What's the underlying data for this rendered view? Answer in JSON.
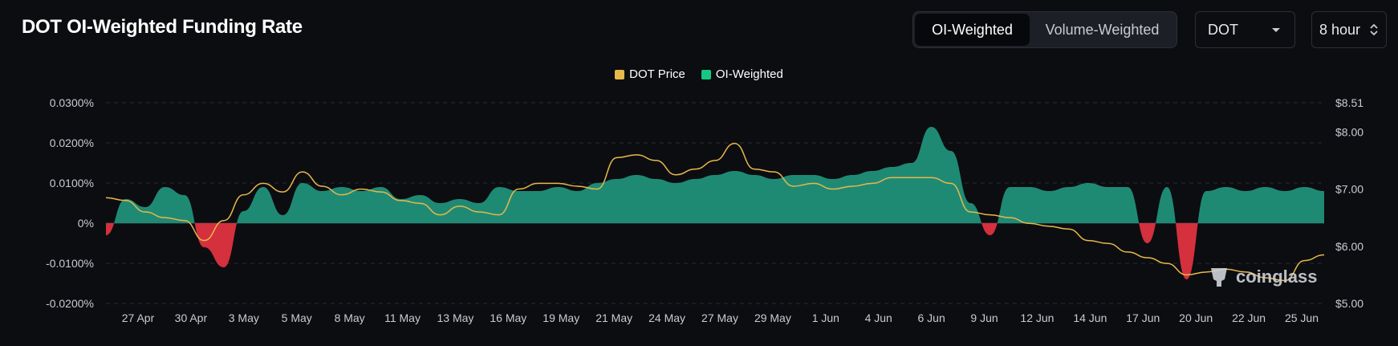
{
  "header": {
    "title": "DOT OI-Weighted Funding Rate",
    "toggle": [
      "OI-Weighted",
      "Volume-Weighted"
    ],
    "coin_select": "DOT",
    "interval_select": "8 hour"
  },
  "watermark": "coinglass",
  "colors": {
    "price": "#e8b84a",
    "positive": "#1f8a74",
    "negative": "#d4303d",
    "grid": "#2a2c33",
    "background": "#0c0d11"
  },
  "chart_data": {
    "type": "area",
    "legend": [
      "DOT Price",
      "OI-Weighted"
    ],
    "legend_position": "top-center",
    "x_tick_labels": [
      "27 Apr",
      "30 Apr",
      "3 May",
      "5 May",
      "8 May",
      "11 May",
      "13 May",
      "16 May",
      "19 May",
      "21 May",
      "24 May",
      "27 May",
      "29 May",
      "1 Jun",
      "4 Jun",
      "6 Jun",
      "9 Jun",
      "12 Jun",
      "14 Jun",
      "17 Jun",
      "20 Jun",
      "22 Jun",
      "25 Jun"
    ],
    "y_left_ticks": [
      "0.0300%",
      "0.0200%",
      "0.0100%",
      "0%",
      "-0.0100%",
      "-0.0200%"
    ],
    "y_right_ticks": [
      "$8.51",
      "$8.00",
      "$7.00",
      "$6.00",
      "$5.00"
    ],
    "y_left_range": [
      -0.02,
      0.03
    ],
    "y_right_range": [
      5.0,
      8.51
    ],
    "grid": true,
    "series": [
      {
        "name": "OI-Weighted",
        "unit": "%",
        "x": [
          "25 Apr",
          "26 Apr",
          "27 Apr",
          "28 Apr",
          "29 Apr",
          "30 Apr",
          "1 May",
          "2 May",
          "3 May",
          "4 May",
          "5 May",
          "6 May",
          "7 May",
          "8 May",
          "9 May",
          "10 May",
          "11 May",
          "12 May",
          "13 May",
          "14 May",
          "15 May",
          "16 May",
          "17 May",
          "18 May",
          "19 May",
          "20 May",
          "21 May",
          "22 May",
          "23 May",
          "24 May",
          "25 May",
          "26 May",
          "27 May",
          "28 May",
          "29 May",
          "30 May",
          "31 May",
          "1 Jun",
          "2 Jun",
          "3 Jun",
          "4 Jun",
          "5 Jun",
          "6 Jun",
          "7 Jun",
          "8 Jun",
          "9 Jun",
          "10 Jun",
          "11 Jun",
          "12 Jun",
          "13 Jun",
          "14 Jun",
          "15 Jun",
          "16 Jun",
          "17 Jun",
          "18 Jun",
          "19 Jun",
          "20 Jun",
          "21 Jun",
          "22 Jun",
          "23 Jun",
          "24 Jun",
          "25 Jun",
          "26 Jun"
        ],
        "values": [
          -0.003,
          0.006,
          0.004,
          0.009,
          0.007,
          -0.006,
          -0.011,
          0.003,
          0.009,
          0.002,
          0.01,
          0.008,
          0.009,
          0.008,
          0.009,
          0.006,
          0.007,
          0.005,
          0.006,
          0.005,
          0.009,
          0.008,
          0.008,
          0.009,
          0.008,
          0.01,
          0.011,
          0.012,
          0.011,
          0.01,
          0.011,
          0.012,
          0.013,
          0.012,
          0.011,
          0.012,
          0.012,
          0.011,
          0.012,
          0.013,
          0.014,
          0.015,
          0.024,
          0.018,
          0.005,
          -0.003,
          0.009,
          0.009,
          0.008,
          0.009,
          0.01,
          0.009,
          0.009,
          -0.005,
          0.009,
          -0.014,
          0.008,
          0.009,
          0.008,
          0.009,
          0.008,
          0.009,
          0.008
        ]
      },
      {
        "name": "DOT Price",
        "unit": "$",
        "x": [
          "25 Apr",
          "26 Apr",
          "27 Apr",
          "28 Apr",
          "29 Apr",
          "30 Apr",
          "1 May",
          "2 May",
          "3 May",
          "4 May",
          "5 May",
          "6 May",
          "7 May",
          "8 May",
          "9 May",
          "10 May",
          "11 May",
          "12 May",
          "13 May",
          "14 May",
          "15 May",
          "16 May",
          "17 May",
          "18 May",
          "19 May",
          "20 May",
          "21 May",
          "22 May",
          "23 May",
          "24 May",
          "25 May",
          "26 May",
          "27 May",
          "28 May",
          "29 May",
          "30 May",
          "31 May",
          "1 Jun",
          "2 Jun",
          "3 Jun",
          "4 Jun",
          "5 Jun",
          "6 Jun",
          "7 Jun",
          "8 Jun",
          "9 Jun",
          "10 Jun",
          "11 Jun",
          "12 Jun",
          "13 Jun",
          "14 Jun",
          "15 Jun",
          "16 Jun",
          "17 Jun",
          "18 Jun",
          "19 Jun",
          "20 Jun",
          "21 Jun",
          "22 Jun",
          "23 Jun",
          "24 Jun",
          "25 Jun",
          "26 Jun"
        ],
        "values": [
          6.85,
          6.8,
          6.6,
          6.5,
          6.45,
          6.1,
          6.45,
          6.9,
          7.1,
          6.95,
          7.3,
          7.05,
          6.9,
          7.0,
          6.95,
          6.8,
          6.75,
          6.55,
          6.7,
          6.6,
          6.55,
          7.0,
          7.1,
          7.1,
          7.05,
          7.0,
          7.55,
          7.6,
          7.5,
          7.25,
          7.35,
          7.5,
          7.8,
          7.35,
          7.3,
          7.05,
          7.1,
          7.0,
          7.05,
          7.1,
          7.2,
          7.2,
          7.2,
          7.1,
          6.6,
          6.55,
          6.5,
          6.4,
          6.35,
          6.3,
          6.1,
          6.05,
          5.9,
          5.8,
          5.7,
          5.5,
          5.55,
          5.6,
          5.55,
          5.45,
          5.4,
          5.75,
          5.85
        ]
      }
    ]
  }
}
